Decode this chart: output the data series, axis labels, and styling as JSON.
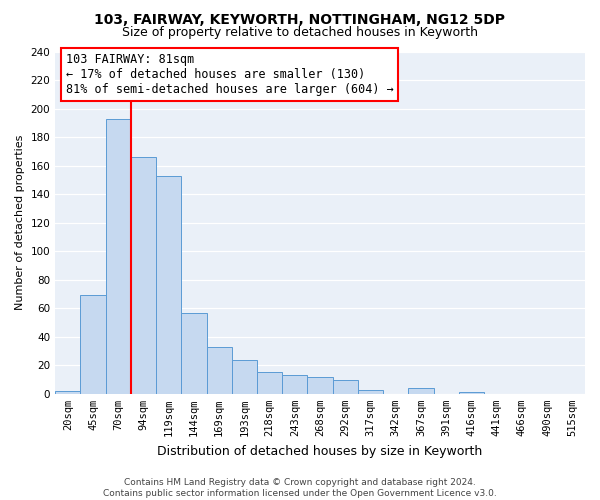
{
  "title": "103, FAIRWAY, KEYWORTH, NOTTINGHAM, NG12 5DP",
  "subtitle": "Size of property relative to detached houses in Keyworth",
  "xlabel": "Distribution of detached houses by size in Keyworth",
  "ylabel": "Number of detached properties",
  "bin_labels": [
    "20sqm",
    "45sqm",
    "70sqm",
    "94sqm",
    "119sqm",
    "144sqm",
    "169sqm",
    "193sqm",
    "218sqm",
    "243sqm",
    "268sqm",
    "292sqm",
    "317sqm",
    "342sqm",
    "367sqm",
    "391sqm",
    "416sqm",
    "441sqm",
    "466sqm",
    "490sqm",
    "515sqm"
  ],
  "bar_values": [
    2,
    69,
    193,
    166,
    153,
    57,
    33,
    24,
    15,
    13,
    12,
    10,
    3,
    0,
    4,
    0,
    1,
    0,
    0,
    0,
    0
  ],
  "bar_color": "#c6d9f0",
  "bar_edge_color": "#5b9bd5",
  "vline_color": "#ff0000",
  "annotation_text": "103 FAIRWAY: 81sqm\n← 17% of detached houses are smaller (130)\n81% of semi-detached houses are larger (604) →",
  "annotation_box_color": "#ffffff",
  "annotation_box_edge_color": "#ff0000",
  "ylim": [
    0,
    240
  ],
  "yticks": [
    0,
    20,
    40,
    60,
    80,
    100,
    120,
    140,
    160,
    180,
    200,
    220,
    240
  ],
  "footer_text": "Contains HM Land Registry data © Crown copyright and database right 2024.\nContains public sector information licensed under the Open Government Licence v3.0.",
  "title_fontsize": 10,
  "subtitle_fontsize": 9,
  "xlabel_fontsize": 9,
  "ylabel_fontsize": 8,
  "tick_fontsize": 7.5,
  "annotation_fontsize": 8.5,
  "footer_fontsize": 6.5,
  "bg_color": "#eaf0f8"
}
